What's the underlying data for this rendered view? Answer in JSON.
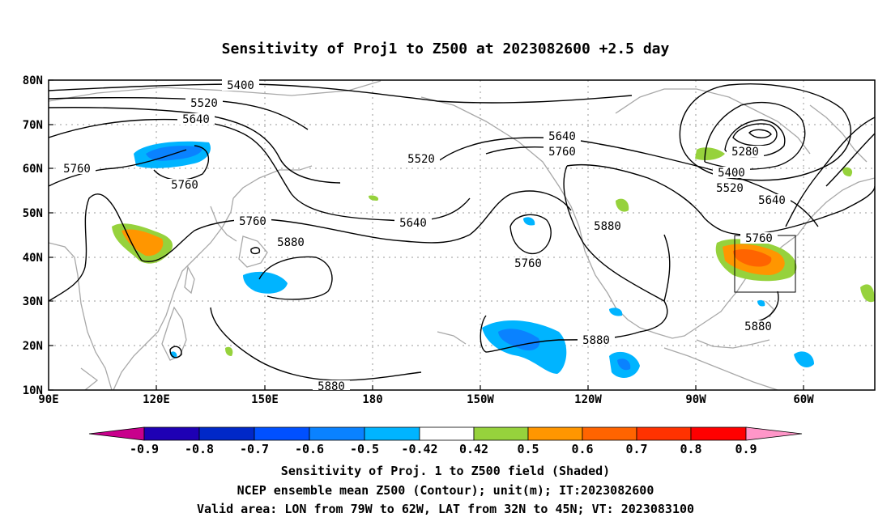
{
  "title": "Sensitivity of Proj1 to Z500 at 2023082600 +2.5 day",
  "lat_ticks": [
    "80N",
    "70N",
    "60N",
    "50N",
    "40N",
    "30N",
    "20N",
    "10N"
  ],
  "lon_ticks": [
    "90E",
    "120E",
    "150E",
    "180",
    "150W",
    "120W",
    "90W",
    "60W"
  ],
  "contour_labels": [
    "5400",
    "5520",
    "5640",
    "5760",
    "5520",
    "5760",
    "5760",
    "5880",
    "5640",
    "5760",
    "5640",
    "5760",
    "5880",
    "5280",
    "5400",
    "5520",
    "5640",
    "5760",
    "5880",
    "5880",
    "5880"
  ],
  "colorbar_labels": [
    "-0.9",
    "-0.8",
    "-0.7",
    "-0.6",
    "-0.5",
    "-0.42",
    "0.42",
    "0.5",
    "0.6",
    "0.7",
    "0.8",
    "0.9"
  ],
  "colorbar_colors": [
    "#c8008c",
    "#1e00b4",
    "#0028c8",
    "#0050ff",
    "#0a82ff",
    "#00b4ff",
    "#ffffff",
    "#96d23c",
    "#ff9600",
    "#ff6400",
    "#ff3200",
    "#ff0000",
    "#ff96c8"
  ],
  "captions": [
    "Sensitivity of Proj. 1 to Z500 field (Shaded)",
    "NCEP ensemble mean Z500 (Contour); unit(m); IT:2023082600",
    "Valid area: LON from 79W to 62W, LAT from 32N to 45N; VT: 2023083100"
  ]
}
